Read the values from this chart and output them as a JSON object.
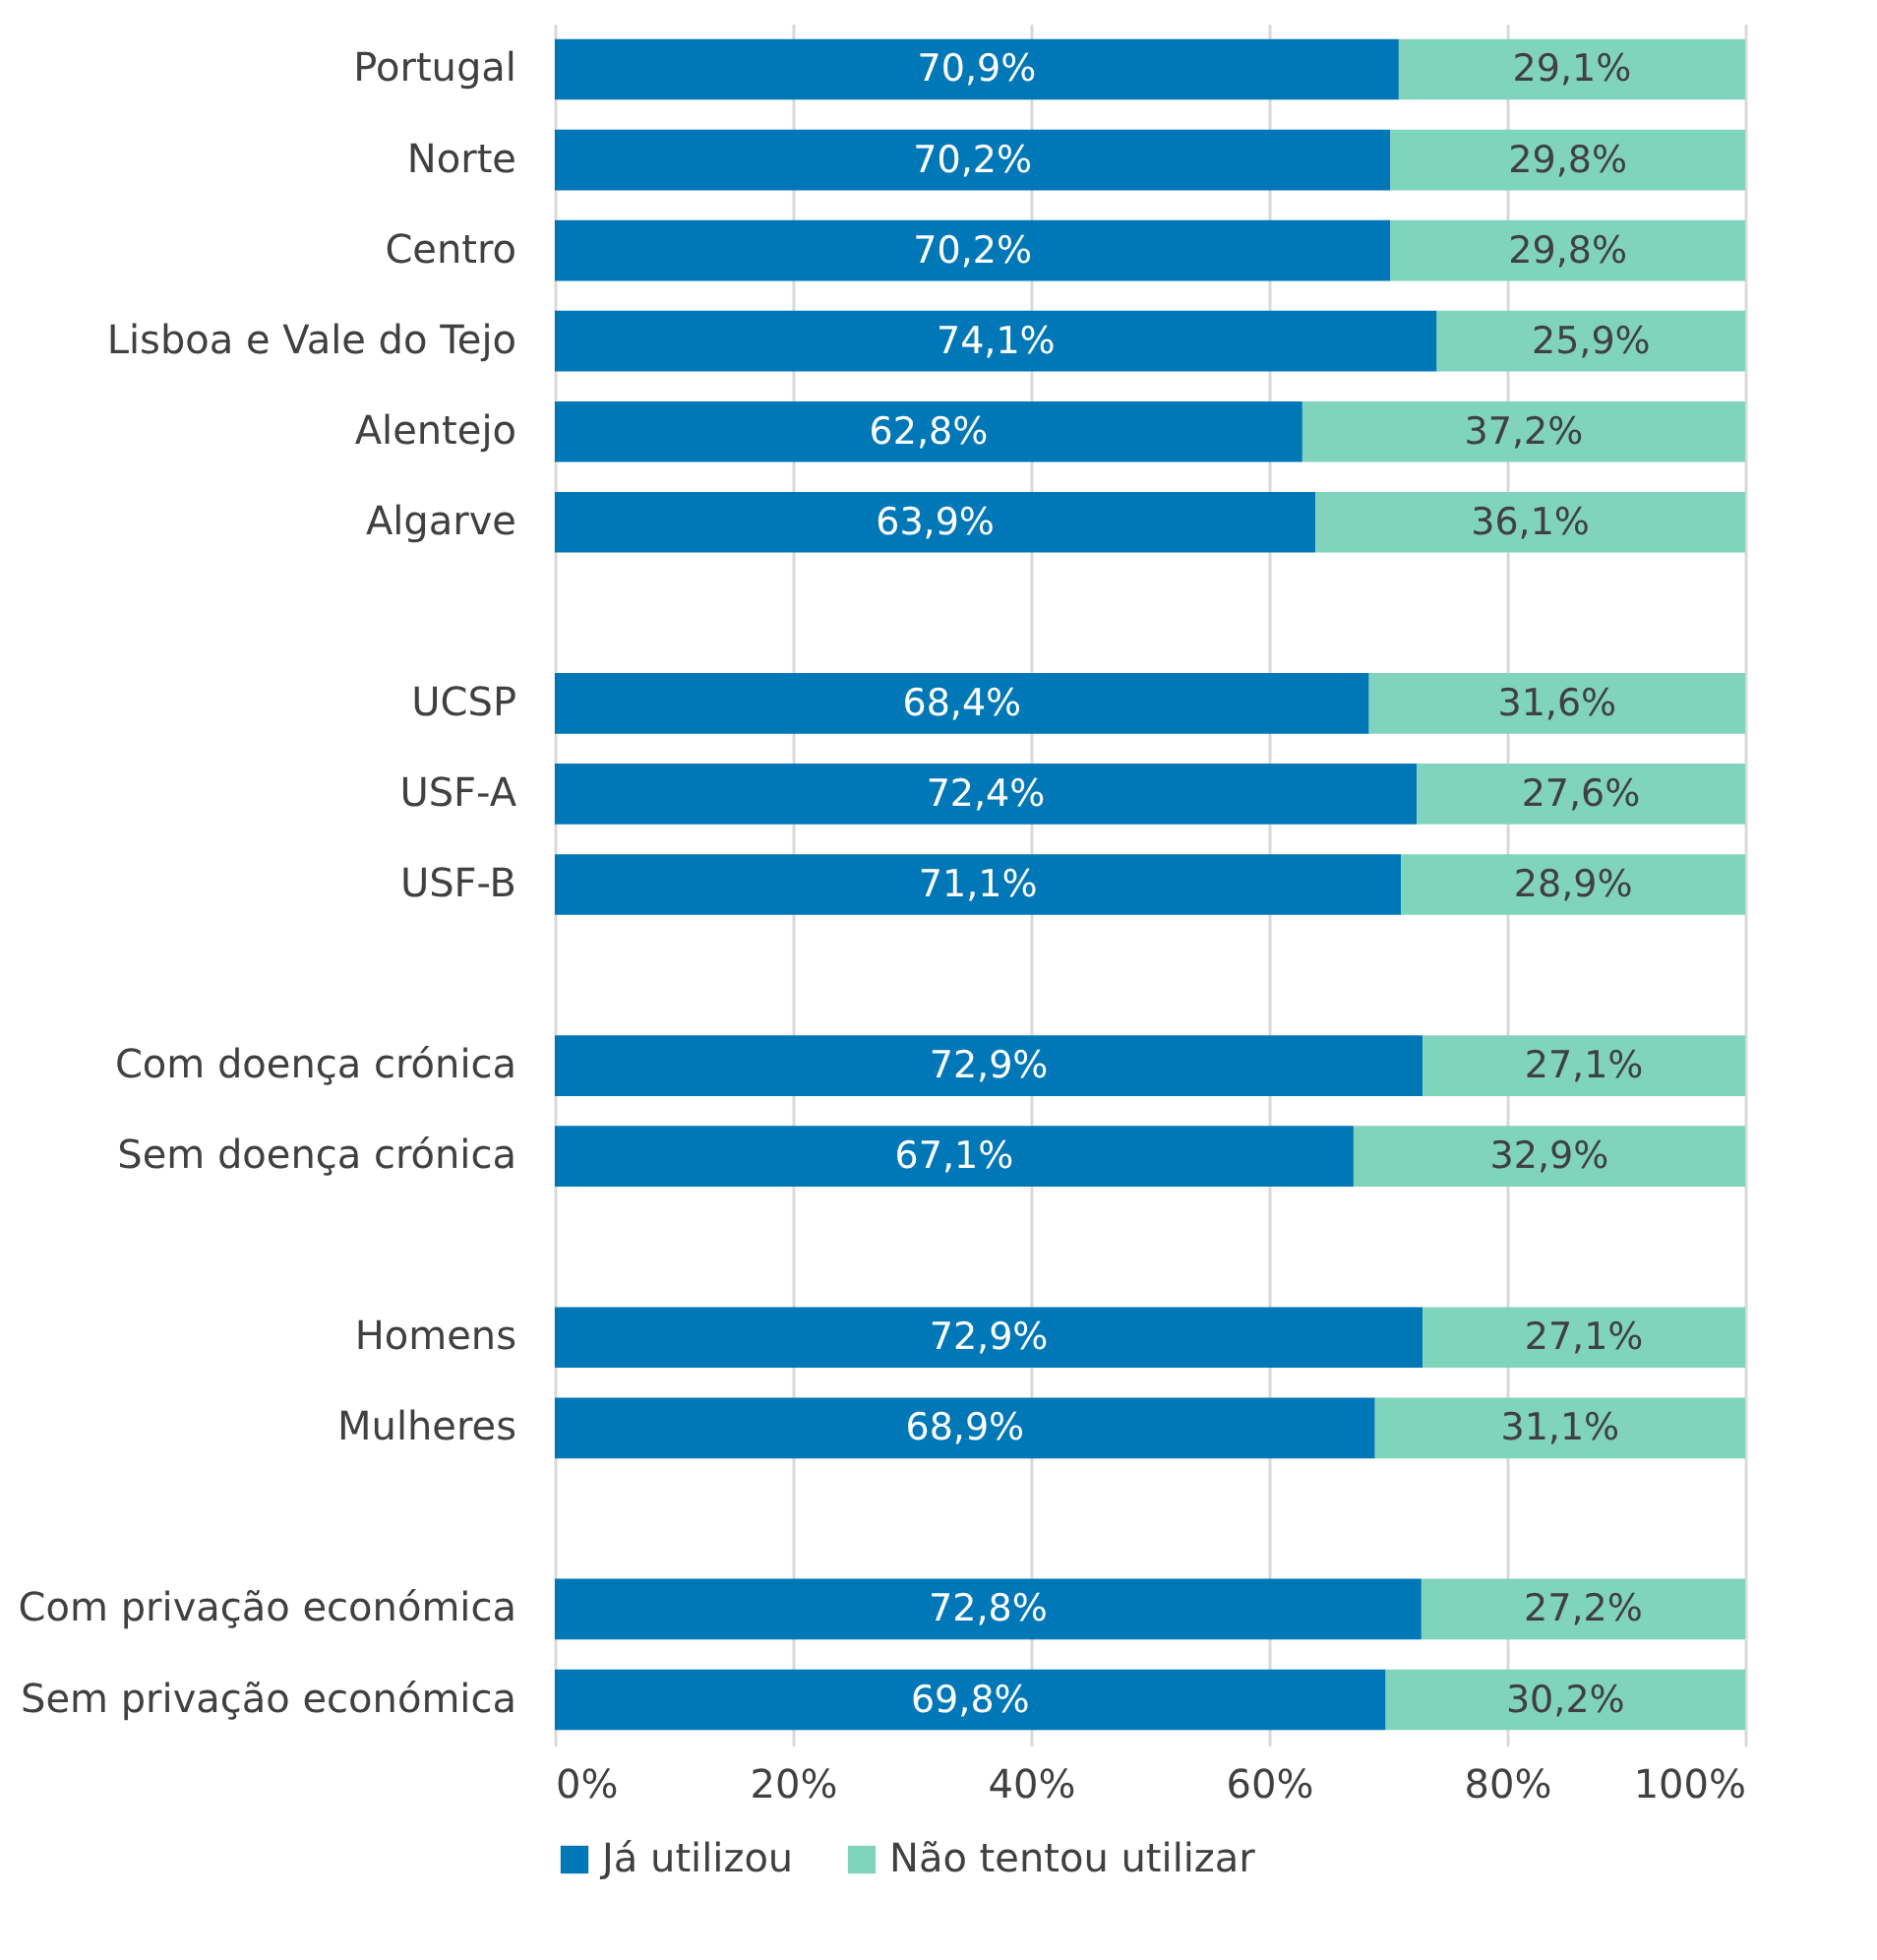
{
  "chart_data": {
    "type": "bar",
    "orientation": "horizontal",
    "stacked": true,
    "categories": [
      "Portugal",
      "Norte",
      "Centro",
      "Lisboa e Vale do Tejo",
      "Alentejo",
      "Algarve",
      null,
      "UCSP",
      "USF-A",
      "USF-B",
      null,
      "Com doença crónica",
      "Sem doença crónica",
      null,
      "Homens",
      "Mulheres",
      null,
      "Com privação económica",
      "Sem privação económica"
    ],
    "series": [
      {
        "name": "Já utilizou",
        "color": "#0077b6",
        "values": [
          70.9,
          70.2,
          70.2,
          74.1,
          62.8,
          63.9,
          null,
          68.4,
          72.4,
          71.1,
          null,
          72.9,
          67.1,
          null,
          72.9,
          68.9,
          null,
          72.8,
          69.8
        ],
        "value_labels": [
          "70,9%",
          "70,2%",
          "70,2%",
          "74,1%",
          "62,8%",
          "63,9%",
          null,
          "68,4%",
          "72,4%",
          "71,1%",
          null,
          "72,9%",
          "67,1%",
          null,
          "72,9%",
          "68,9%",
          null,
          "72,8%",
          "69,8%"
        ]
      },
      {
        "name": "Não tentou utilizar",
        "color": "#80d4bb",
        "values": [
          29.1,
          29.8,
          29.8,
          25.9,
          37.2,
          36.1,
          null,
          31.6,
          27.6,
          28.9,
          null,
          27.1,
          32.9,
          null,
          27.1,
          31.1,
          null,
          27.2,
          30.2
        ],
        "value_labels": [
          "29,1%",
          "29,8%",
          "29,8%",
          "25,9%",
          "37,2%",
          "36,1%",
          null,
          "31,6%",
          "27,6%",
          "28,9%",
          null,
          "27,1%",
          "32,9%",
          null,
          "27,1%",
          "31,1%",
          null,
          "27,2%",
          "30,2%"
        ]
      }
    ],
    "xlim": [
      0,
      100
    ],
    "xticks": [
      {
        "value": 0,
        "label": "0%"
      },
      {
        "value": 20,
        "label": "20%"
      },
      {
        "value": 40,
        "label": "40%"
      },
      {
        "value": 60,
        "label": "60%"
      },
      {
        "value": 80,
        "label": "80%"
      },
      {
        "value": 100,
        "label": "100%"
      }
    ],
    "grid": "x",
    "legend": "bottom"
  }
}
